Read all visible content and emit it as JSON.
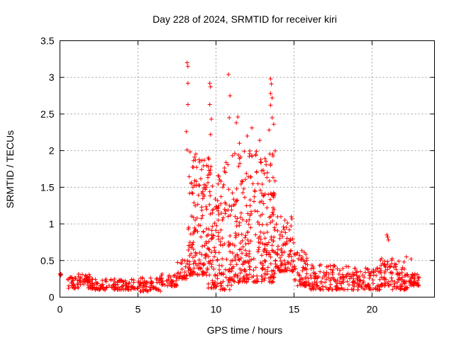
{
  "chart_data": {
    "type": "scatter",
    "title": "Day 228 of 2024, SRMTID for receiver kiri",
    "xlabel": "GPS time / hours",
    "ylabel": "SRMTID / TECUs",
    "xlim": [
      0,
      24
    ],
    "ylim": [
      0,
      3.5
    ],
    "x_ticks": [
      0,
      5,
      10,
      15,
      20
    ],
    "x_tick_labels": [
      "0",
      "5",
      "10",
      "15",
      "20"
    ],
    "y_ticks": [
      0,
      0.5,
      1,
      1.5,
      2,
      2.5,
      3,
      3.5
    ],
    "y_tick_labels": [
      "0",
      "0.5",
      "1",
      "1.5",
      "2",
      "2.5",
      "3",
      "3.5"
    ],
    "grid": true,
    "marker": "+",
    "color": "#ff0000",
    "series": [
      {
        "name": "SRMTID",
        "profile": [
          {
            "x_range": [
              0.0,
              0.1
            ],
            "y_range": [
              0.28,
              0.32
            ],
            "count": 4
          },
          {
            "x_range": [
              0.5,
              2.0
            ],
            "y_range": [
              0.12,
              0.32
            ],
            "count": 70
          },
          {
            "x_range": [
              2.0,
              5.0
            ],
            "y_range": [
              0.1,
              0.25
            ],
            "count": 120
          },
          {
            "x_range": [
              5.0,
              6.5
            ],
            "y_range": [
              0.08,
              0.28
            ],
            "count": 60
          },
          {
            "x_range": [
              6.5,
              7.5
            ],
            "y_range": [
              0.15,
              0.32
            ],
            "count": 40
          },
          {
            "x_range": [
              7.5,
              8.2
            ],
            "y_range": [
              0.25,
              0.55
            ],
            "count": 30
          },
          {
            "x_range": [
              8.2,
              9.5
            ],
            "y_range": [
              0.3,
              2.0
            ],
            "count": 150
          },
          {
            "x_range": [
              9.5,
              11.0
            ],
            "y_range": [
              0.1,
              1.9
            ],
            "count": 160
          },
          {
            "x_range": [
              11.0,
              12.5
            ],
            "y_range": [
              0.2,
              2.0
            ],
            "count": 150
          },
          {
            "x_range": [
              12.5,
              13.8
            ],
            "y_range": [
              0.2,
              2.0
            ],
            "count": 150
          },
          {
            "x_range": [
              13.8,
              15.0
            ],
            "y_range": [
              0.35,
              1.1
            ],
            "count": 90
          },
          {
            "x_range": [
              15.0,
              16.0
            ],
            "y_range": [
              0.15,
              0.65
            ],
            "count": 60
          },
          {
            "x_range": [
              16.0,
              18.5
            ],
            "y_range": [
              0.1,
              0.45
            ],
            "count": 120
          },
          {
            "x_range": [
              18.5,
              20.5
            ],
            "y_range": [
              0.1,
              0.4
            ],
            "count": 100
          },
          {
            "x_range": [
              20.5,
              21.3
            ],
            "y_range": [
              0.15,
              0.55
            ],
            "count": 50
          },
          {
            "x_range": [
              21.3,
              22.3
            ],
            "y_range": [
              0.1,
              0.5
            ],
            "count": 60
          },
          {
            "x_range": [
              22.3,
              23.0
            ],
            "y_range": [
              0.15,
              0.32
            ],
            "count": 40
          }
        ],
        "points": [
          [
            8.15,
            3.2
          ],
          [
            8.2,
            3.15
          ],
          [
            8.2,
            2.92
          ],
          [
            8.2,
            2.63
          ],
          [
            8.1,
            2.26
          ],
          [
            8.15,
            2.01
          ],
          [
            9.6,
            2.92
          ],
          [
            9.65,
            2.87
          ],
          [
            9.6,
            2.63
          ],
          [
            9.7,
            2.43
          ],
          [
            9.65,
            2.22
          ],
          [
            10.8,
            3.04
          ],
          [
            10.9,
            2.75
          ],
          [
            10.85,
            2.45
          ],
          [
            11.4,
            2.46
          ],
          [
            11.3,
            2.38
          ],
          [
            11.5,
            2.1
          ],
          [
            13.5,
            2.98
          ],
          [
            13.55,
            2.91
          ],
          [
            13.5,
            2.78
          ],
          [
            13.6,
            2.72
          ],
          [
            13.5,
            2.62
          ],
          [
            13.6,
            2.45
          ],
          [
            13.7,
            2.36
          ],
          [
            13.4,
            2.28
          ],
          [
            12.3,
            2.31
          ],
          [
            12.0,
            2.2
          ],
          [
            12.8,
            2.14
          ],
          [
            20.95,
            0.85
          ],
          [
            21.0,
            0.82
          ],
          [
            21.05,
            0.78
          ],
          [
            22.2,
            0.55
          ],
          [
            22.5,
            0.52
          ]
        ]
      }
    ]
  }
}
